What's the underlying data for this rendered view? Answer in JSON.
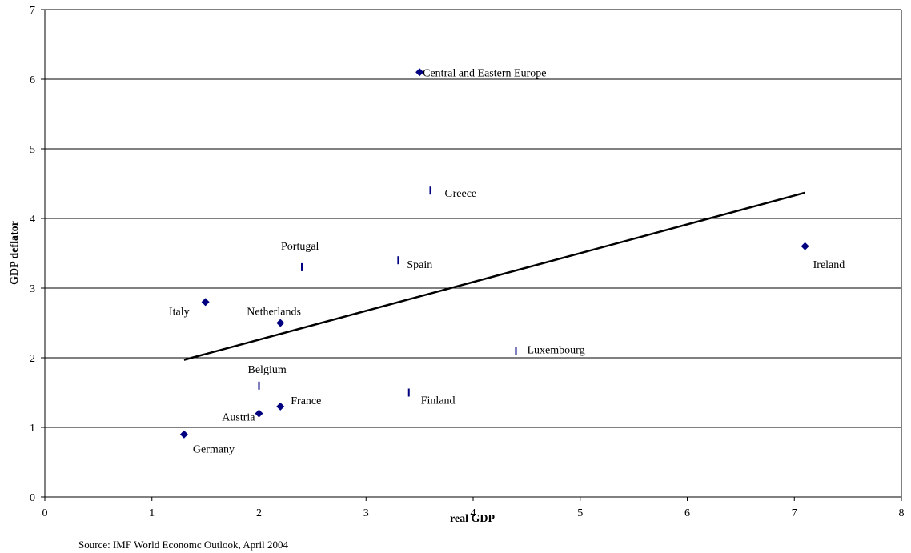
{
  "chart_data": {
    "type": "scatter",
    "xlabel": "real GDP",
    "ylabel": "GDP deflator",
    "xlim": [
      0,
      8
    ],
    "ylim": [
      0,
      7
    ],
    "xticks": [
      "0",
      "1",
      "2",
      "3",
      "4",
      "5",
      "6",
      "7",
      "8"
    ],
    "yticks": [
      "0",
      "1",
      "2",
      "3",
      "4",
      "5",
      "6",
      "7"
    ],
    "grid": "horizontal",
    "points": [
      {
        "label": "Central and Eastern Europe",
        "x": 3.5,
        "y": 6.1,
        "marker": "diamond"
      },
      {
        "label": "Greece",
        "x": 3.6,
        "y": 4.4,
        "marker": "bar"
      },
      {
        "label": "Ireland",
        "x": 7.1,
        "y": 3.6,
        "marker": "diamond"
      },
      {
        "label": "Portugal",
        "x": 2.4,
        "y": 3.3,
        "marker": "bar"
      },
      {
        "label": "Spain",
        "x": 3.3,
        "y": 3.4,
        "marker": "bar"
      },
      {
        "label": "Italy",
        "x": 1.5,
        "y": 2.8,
        "marker": "diamond"
      },
      {
        "label": "Netherlands",
        "x": 2.2,
        "y": 2.5,
        "marker": "diamond"
      },
      {
        "label": "Luxembourg",
        "x": 4.4,
        "y": 2.1,
        "marker": "bar"
      },
      {
        "label": "Belgium",
        "x": 2.0,
        "y": 1.6,
        "marker": "bar"
      },
      {
        "label": "Finland",
        "x": 3.4,
        "y": 1.5,
        "marker": "bar"
      },
      {
        "label": "France",
        "x": 2.2,
        "y": 1.3,
        "marker": "diamond"
      },
      {
        "label": "Austria",
        "x": 2.0,
        "y": 1.2,
        "marker": "diamond"
      },
      {
        "label": "Germany",
        "x": 1.3,
        "y": 0.9,
        "marker": "diamond"
      }
    ],
    "trendline": {
      "x": [
        1.3,
        7.1
      ],
      "y": [
        1.97,
        4.37
      ]
    },
    "marker_color": "#000080",
    "source_note": "Source: IMF World Economc Outlook, April 2004"
  }
}
